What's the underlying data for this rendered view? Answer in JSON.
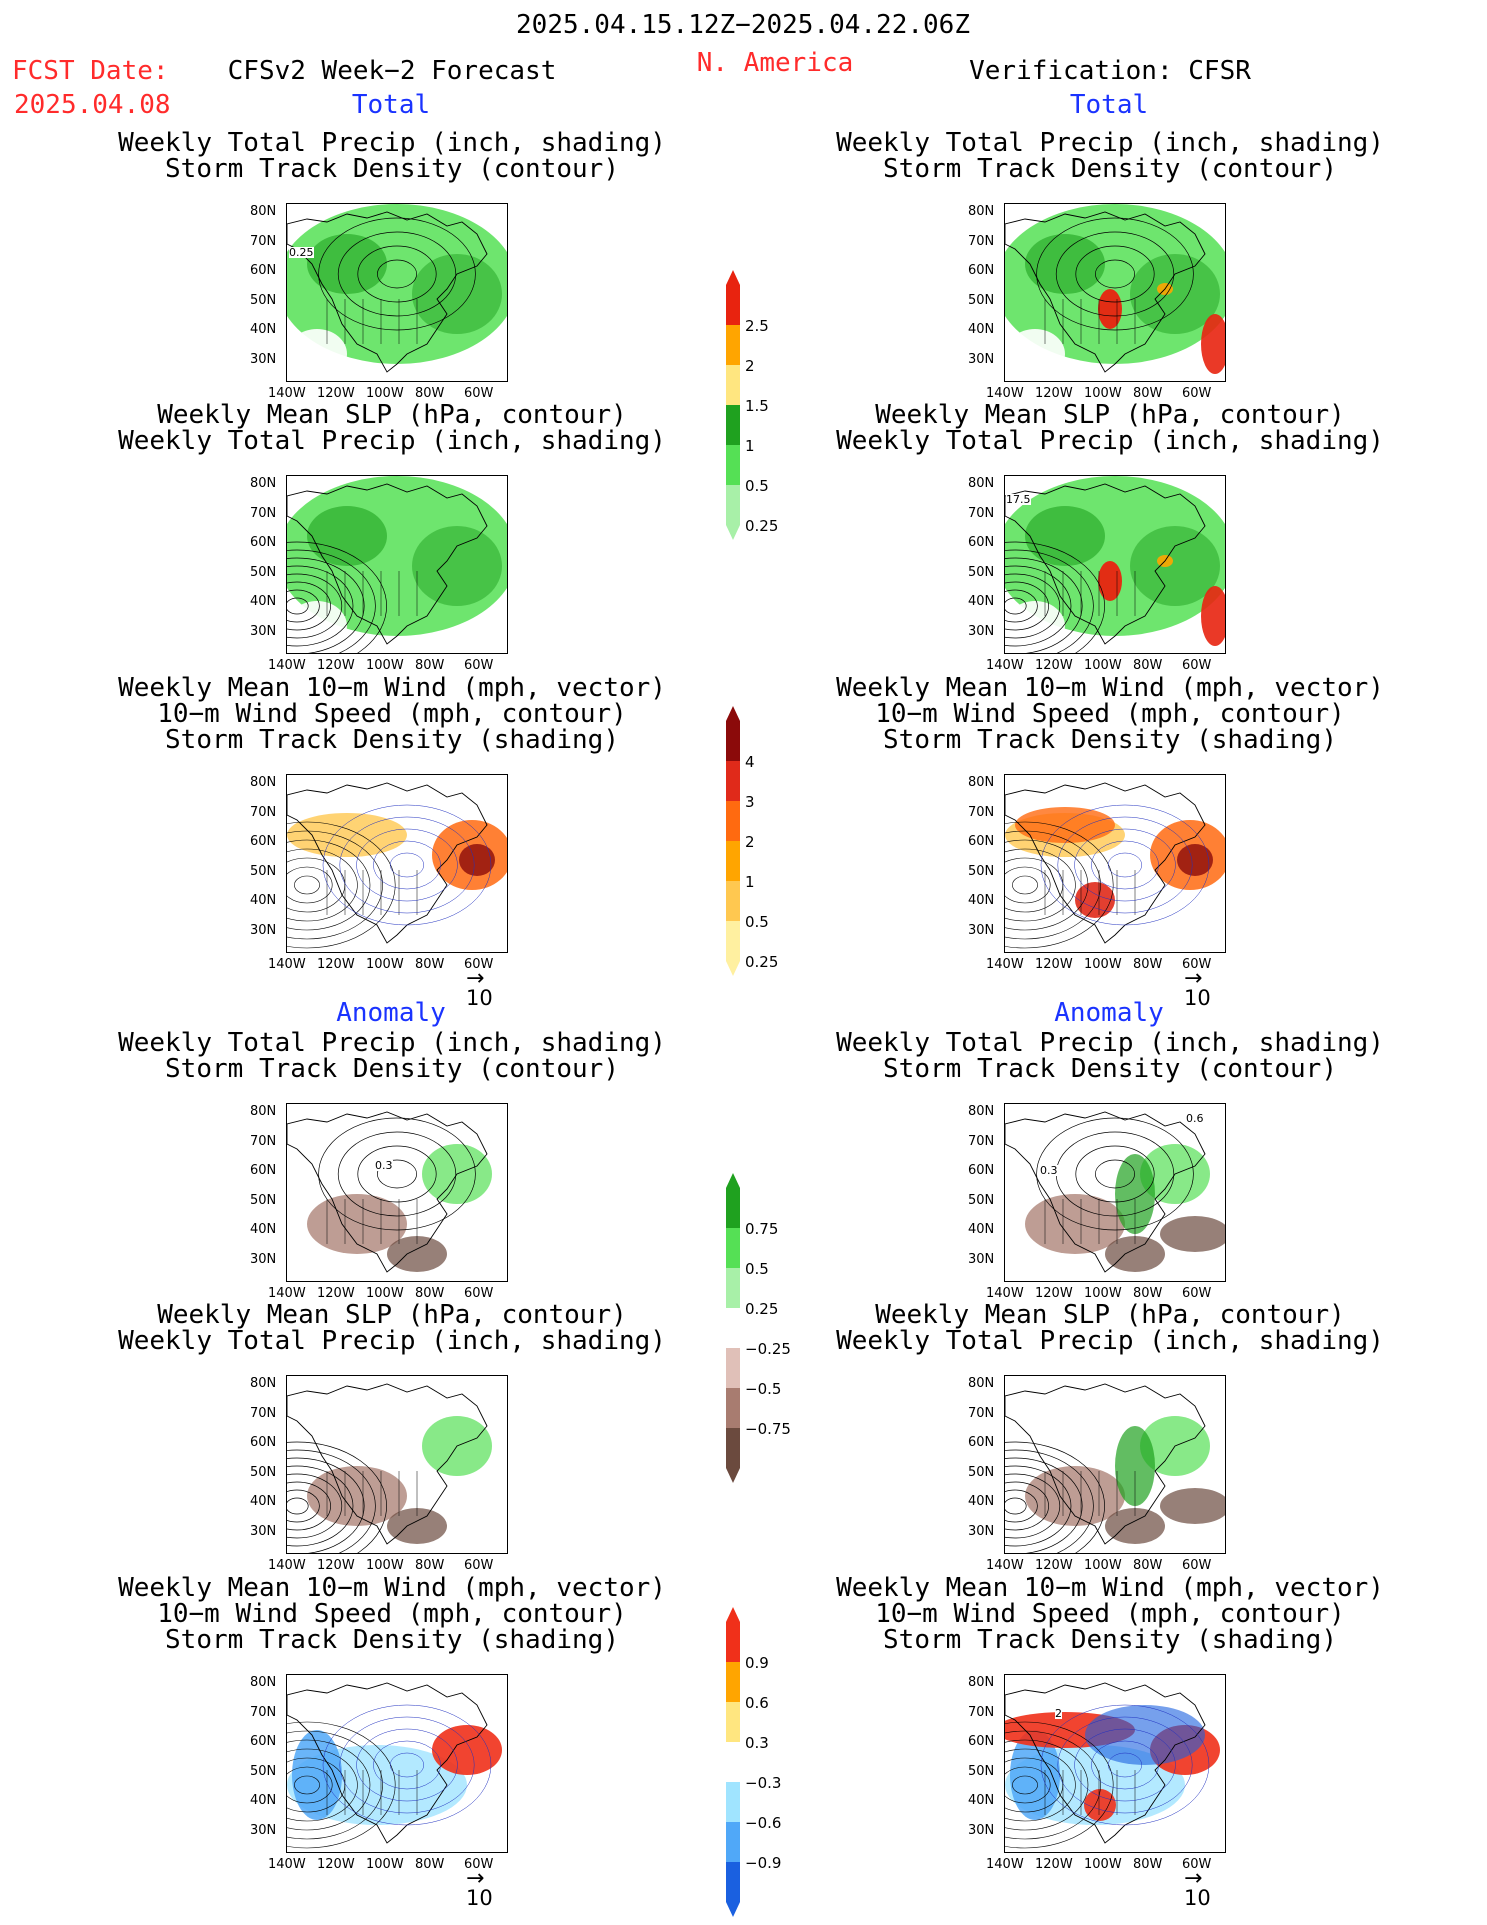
{
  "header": {
    "date_range": "2025.04.15.12Z−2025.04.22.06Z",
    "fcst_label": "FCST Date:",
    "fcst_date": "2025.04.08",
    "forecast_title": "CFSv2 Week−2 Forecast",
    "region": "N. America",
    "verification": "Verification: CFSR"
  },
  "sections": {
    "total": "Total",
    "anomaly": "Anomaly"
  },
  "panel_titles": {
    "precip_track": [
      "Weekly Total Precip (inch, shading)",
      "Storm Track Density (contour)"
    ],
    "slp_precip": [
      "Weekly Mean SLP (hPa, contour)",
      "Weekly Total Precip (inch, shading)"
    ],
    "wind_track": [
      "Weekly Mean 10−m Wind (mph, vector)",
      "10−m Wind Speed (mph, contour)",
      "Storm Track Density (shading)"
    ]
  },
  "axes": {
    "lat_labels": [
      "80N",
      "70N",
      "60N",
      "50N",
      "40N",
      "30N"
    ],
    "lon_labels": [
      "140W",
      "120W",
      "100W",
      "80W",
      "60W"
    ]
  },
  "vector_reference": "10",
  "contour_labels": {
    "fcst_total_precip": "0.25",
    "cfsr_total_slp": "17.5",
    "fcst_anom_precip": "0.3",
    "cfsr_anom_precip_a": "0.6",
    "cfsr_anom_precip_b": "0.3",
    "cfsr_anom_wind": "2"
  },
  "colorbars": [
    {
      "name": "total-precip",
      "labels": [
        "2.5",
        "2",
        "1.5",
        "1",
        "0.5",
        "0.25"
      ],
      "colors": [
        "#e8230f",
        "#ffa500",
        "#ffe680",
        "#1fa11f",
        "#55e055",
        "#a8f0a8"
      ]
    },
    {
      "name": "total-storm-track",
      "labels": [
        "4",
        "3",
        "2",
        "1",
        "0.5",
        "0.25"
      ],
      "colors": [
        "#8b0a0a",
        "#e02a1a",
        "#ff6a10",
        "#ffa500",
        "#ffc850",
        "#fff0a0"
      ]
    },
    {
      "name": "anomaly-precip",
      "labels": [
        "0.75",
        "0.5",
        "0.25",
        "−0.25",
        "−0.5",
        "−0.75"
      ],
      "colors": [
        "#1fa11f",
        "#55e055",
        "#a8f0a8",
        "#ffffff",
        "#e0c0b8",
        "#a87c70",
        "#6b4a3e"
      ]
    },
    {
      "name": "anomaly-storm-track",
      "labels": [
        "0.9",
        "0.6",
        "0.3",
        "−0.3",
        "−0.6",
        "−0.9"
      ],
      "colors": [
        "#f0301a",
        "#ffa500",
        "#ffe680",
        "#ffffff",
        "#a0e4ff",
        "#50a8f8",
        "#1a60e0"
      ]
    }
  ]
}
